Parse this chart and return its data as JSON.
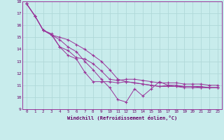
{
  "xlabel": "Windchill (Refroidissement éolien,°C)",
  "background_color": "#c8ecec",
  "grid_color": "#b0d8d8",
  "line_color": "#993399",
  "xlim": [
    -0.5,
    23.5
  ],
  "ylim": [
    9,
    18
  ],
  "xticks": [
    0,
    1,
    2,
    3,
    4,
    5,
    6,
    7,
    8,
    9,
    10,
    11,
    12,
    13,
    14,
    15,
    16,
    17,
    18,
    19,
    20,
    21,
    22,
    23
  ],
  "yticks": [
    9,
    10,
    11,
    12,
    13,
    14,
    15,
    16,
    17,
    18
  ],
  "series": [
    [
      17.8,
      16.8,
      15.6,
      15.3,
      14.2,
      13.5,
      13.2,
      12.1,
      11.3,
      11.3,
      11.3,
      11.2,
      11.3,
      11.2,
      11.1,
      11.0,
      10.9,
      11.0,
      11.0,
      10.9,
      10.9,
      10.9,
      10.8,
      10.8
    ],
    [
      17.8,
      16.8,
      15.6,
      15.2,
      14.2,
      13.9,
      13.3,
      13.2,
      12.8,
      12.2,
      11.5,
      11.4,
      11.5,
      11.5,
      11.4,
      11.3,
      11.2,
      11.2,
      11.2,
      11.1,
      11.1,
      11.1,
      11.0,
      11.0
    ],
    [
      17.8,
      16.8,
      15.6,
      15.2,
      15.0,
      14.8,
      14.4,
      14.0,
      13.5,
      13.0,
      12.3,
      11.5,
      11.3,
      11.2,
      11.1,
      11.0,
      10.9,
      10.9,
      10.9,
      10.8,
      10.8,
      10.8,
      10.8,
      10.8
    ],
    [
      17.8,
      16.8,
      15.6,
      15.2,
      14.8,
      14.2,
      13.8,
      13.0,
      12.3,
      11.5,
      10.8,
      9.8,
      9.6,
      10.7,
      10.1,
      10.7,
      11.3,
      11.0,
      10.9,
      10.9,
      10.9,
      10.8,
      10.8,
      10.8
    ]
  ]
}
